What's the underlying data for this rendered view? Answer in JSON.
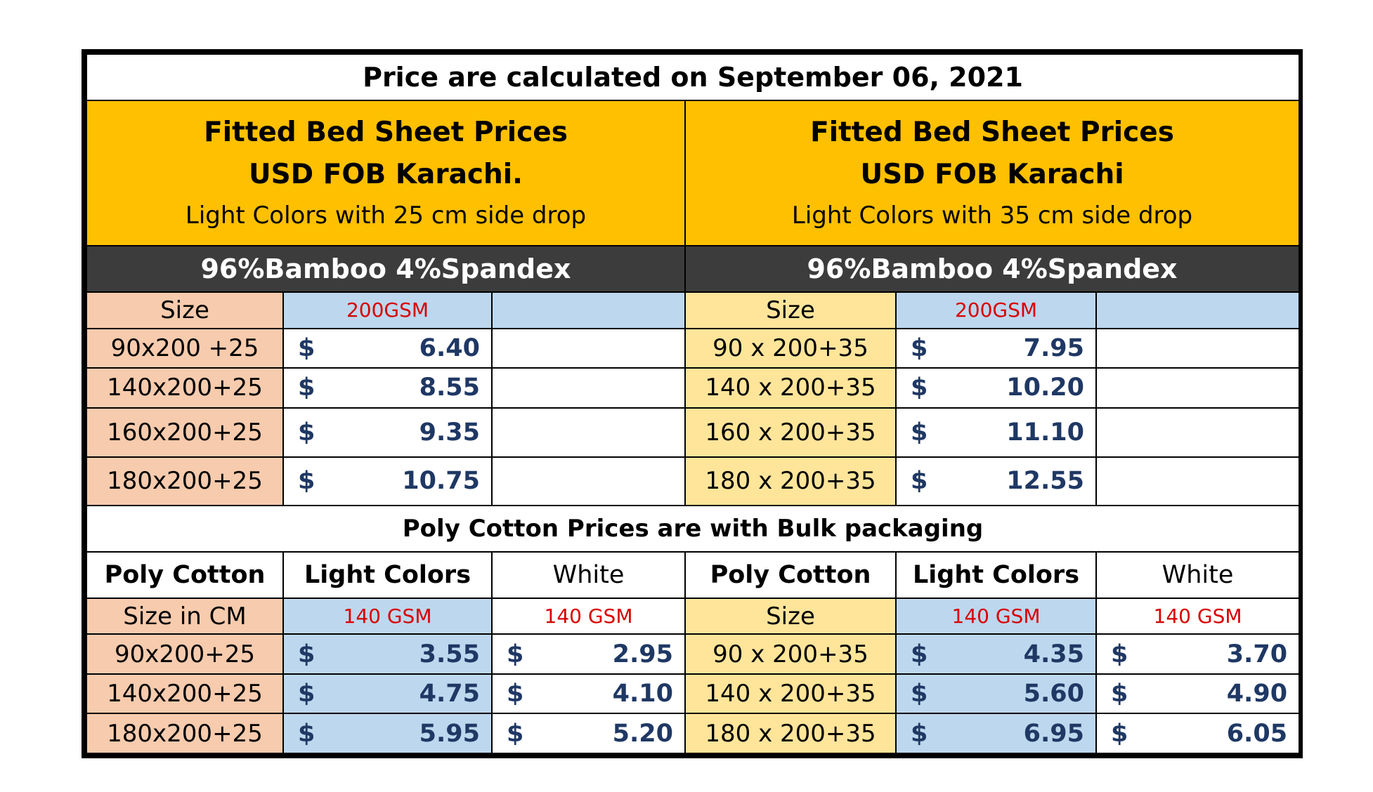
{
  "title": "Price are calculated on September 06, 2021",
  "left_header": {
    "line1": "Fitted Bed Sheet Prices",
    "line2": "USD FOB Karachi.",
    "line3": "Light Colors with 25 cm side drop",
    "material": "96%Bamboo  4%Spandex",
    "size_label": "Size",
    "gsm": "200GSM",
    "rows": [
      {
        "size": "90x200 +25",
        "cur": "$",
        "price": "6.40"
      },
      {
        "size": "140x200+25",
        "cur": "$",
        "price": "8.55"
      },
      {
        "size": "160x200+25",
        "cur": "$",
        "price": "9.35"
      },
      {
        "size": "180x200+25",
        "cur": "$",
        "price": "10.75"
      }
    ]
  },
  "right_header": {
    "line1": "Fitted Bed Sheet Prices",
    "line2": "USD FOB Karachi",
    "line3": "Light Colors with 35 cm side drop",
    "material": "96%Bamboo  4%Spandex",
    "size_label": "Size",
    "gsm": "200GSM",
    "rows": [
      {
        "size": "90 x 200+35",
        "cur": "$",
        "price": "7.95"
      },
      {
        "size": "140 x 200+35",
        "cur": "$",
        "price": "10.20"
      },
      {
        "size": "160 x 200+35",
        "cur": "$",
        "price": "11.10"
      },
      {
        "size": "180 x 200+35",
        "cur": "$",
        "price": "12.55"
      }
    ]
  },
  "poly": {
    "title": "Poly Cotton Prices are with Bulk packaging",
    "left": {
      "col1": "Poly Cotton",
      "col2": "Light Colors",
      "col3": "White",
      "size_label": "Size in CM",
      "gsm_light": "140 GSM",
      "gsm_white": "140 GSM",
      "rows": [
        {
          "size": "90x200+25",
          "light": "3.55",
          "white": "2.95"
        },
        {
          "size": "140x200+25",
          "light": "4.75",
          "white": "4.10"
        },
        {
          "size": "180x200+25",
          "light": "5.95",
          "white": "5.20"
        }
      ]
    },
    "right": {
      "col1": "Poly Cotton",
      "col2": "Light Colors",
      "col3": "White",
      "size_label": "Size",
      "gsm_light": "140 GSM",
      "gsm_white": "140 GSM",
      "rows": [
        {
          "size": "90 x 200+35",
          "light": "4.35",
          "white": "3.70"
        },
        {
          "size": "140 x 200+35",
          "light": "5.60",
          "white": "4.90"
        },
        {
          "size": "180 x 200+35",
          "light": "6.95",
          "white": "6.05"
        }
      ]
    },
    "cur": "$"
  },
  "colors": {
    "header_orange": "#fec000",
    "material_bar": "#3c3c3c",
    "size_salmon": "#f7cbad",
    "size_yellow": "#ffe59a",
    "gsm_blue": "#bdd7ee",
    "gsm_red": "#d80000",
    "price_navy": "#1f3864"
  }
}
